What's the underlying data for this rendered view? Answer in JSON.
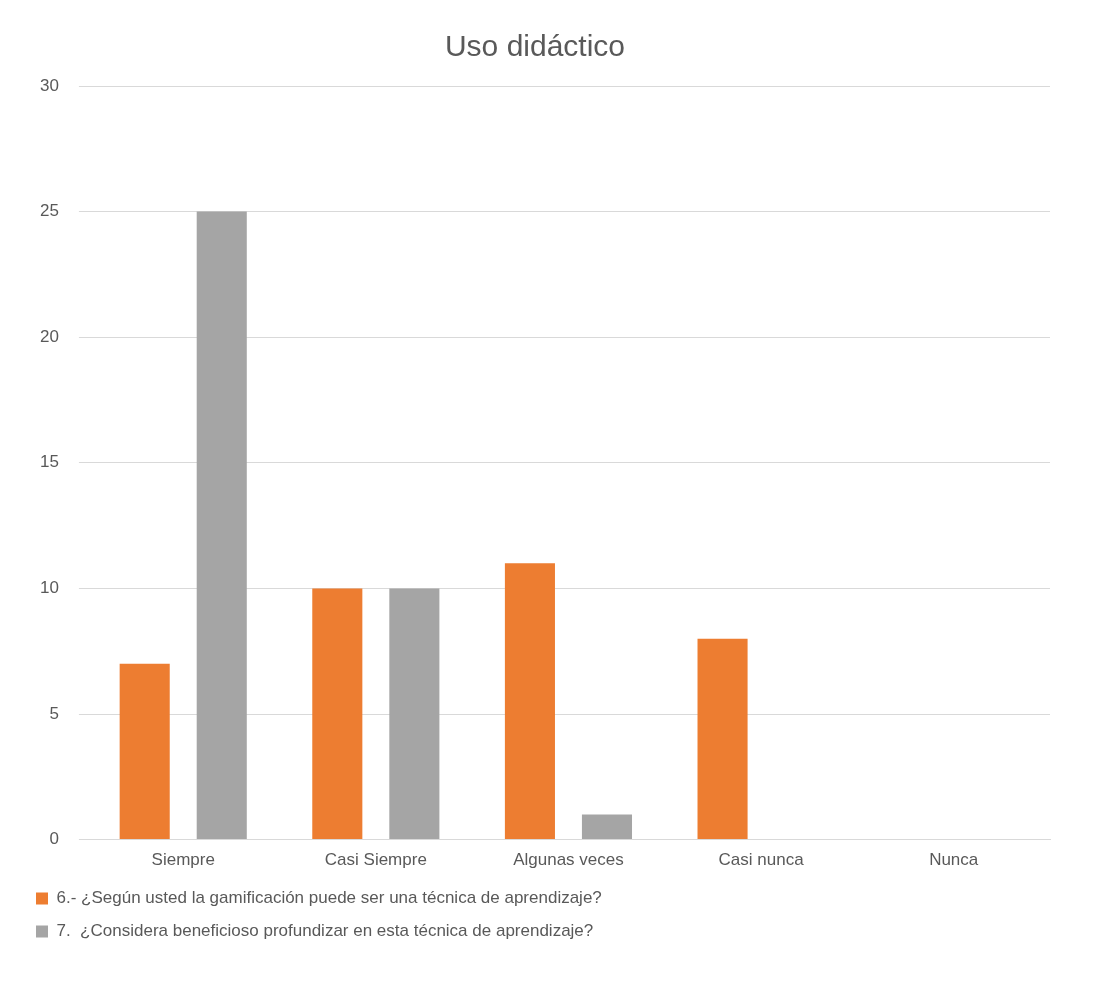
{
  "chart_data": {
    "type": "bar",
    "title": "Uso didáctico",
    "categories": [
      "Siempre",
      "Casi Siempre",
      "Algunas veces",
      "Casi nunca",
      "Nunca"
    ],
    "series": [
      {
        "name": "6.- ¿Según usted la gamificación puede ser una técnica de aprendizaje?",
        "color": "#ed7d31",
        "values": [
          7,
          10,
          11,
          8,
          0
        ]
      },
      {
        "name": "7.  ¿Considera beneficioso profundizar en esta técnica de aprendizaje?",
        "color": "#a5a5a5",
        "values": [
          25,
          10,
          1,
          0,
          0
        ]
      }
    ],
    "ylim": [
      0,
      30
    ],
    "yticks": [
      0,
      5,
      10,
      15,
      20,
      25,
      30
    ],
    "grid": "y",
    "legend": "bottom"
  }
}
